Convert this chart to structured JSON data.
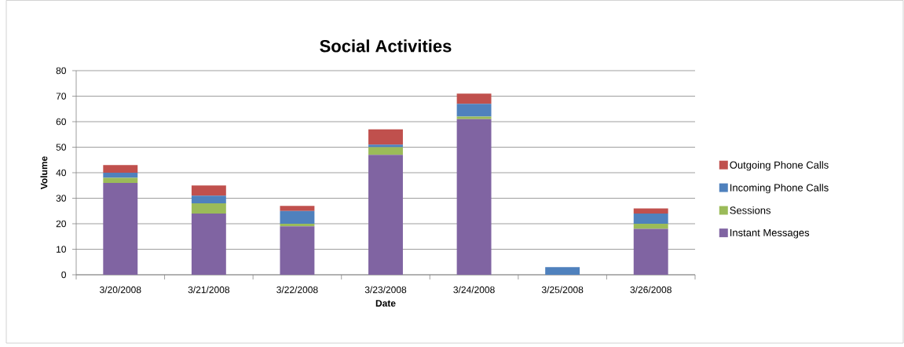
{
  "chart_data": {
    "type": "bar",
    "stacked": true,
    "title": "Social Activities",
    "xlabel": "Date",
    "ylabel": "Volume",
    "categories": [
      "3/20/2008",
      "3/21/2008",
      "3/22/2008",
      "3/23/2008",
      "3/24/2008",
      "3/25/2008",
      "3/26/2008"
    ],
    "series": [
      {
        "name": "Instant Messages",
        "color": "#8064a2",
        "values": [
          36,
          24,
          19,
          47,
          61,
          0,
          18
        ]
      },
      {
        "name": "Sessions",
        "color": "#9bbb59",
        "values": [
          2,
          4,
          1,
          3,
          1,
          0,
          2
        ]
      },
      {
        "name": "Incoming Phone Calls",
        "color": "#4f81bd",
        "values": [
          2,
          3,
          5,
          1,
          5,
          3,
          4
        ]
      },
      {
        "name": "Outgoing Phone Calls",
        "color": "#c0504d",
        "values": [
          3,
          4,
          2,
          6,
          4,
          0,
          2
        ]
      }
    ],
    "ylim": [
      0,
      80
    ],
    "yticks": [
      0,
      10,
      20,
      30,
      40,
      50,
      60,
      70,
      80
    ],
    "grid": "y",
    "legend": "right"
  }
}
